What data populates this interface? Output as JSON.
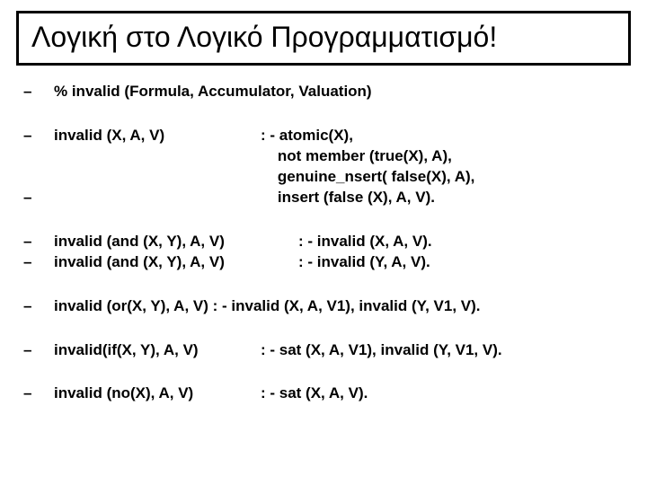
{
  "title": "Λογική στο Λογικό Προγραμματισμό!",
  "lines": {
    "l1": "% invalid (Formula, Accumulator, Valuation)",
    "l2_left": "invalid (X, A, V)",
    "l2_r1": ": - atomic(X),",
    "l2_r2": "    not member (true(X), A),",
    "l2_r3": "    genuine_nsert( false(X), A),",
    "l2_r4": "    insert (false (X), A, V).",
    "l3_left": "invalid (and (X, Y), A, V)",
    "l3_right": ": - invalid (X, A, V).",
    "l4_left": "invalid (and (X, Y), A, V)",
    "l4_right": ": - invalid (Y, A, V).",
    "l5": "invalid (or(X, Y), A, V) : - invalid (X, A, V1), invalid (Y, V1, V).",
    "l6_left": "invalid(if(X, Y), A, V)",
    "l6_right": ": - sat (X, A, V1), invalid (Y, V1, V).",
    "l7_left": "invalid (no(X), A, V)",
    "l7_right": ": - sat (X, A, V).",
    "dash": "–"
  },
  "colors": {
    "text": "#000000",
    "background": "#ffffff",
    "border": "#000000"
  }
}
